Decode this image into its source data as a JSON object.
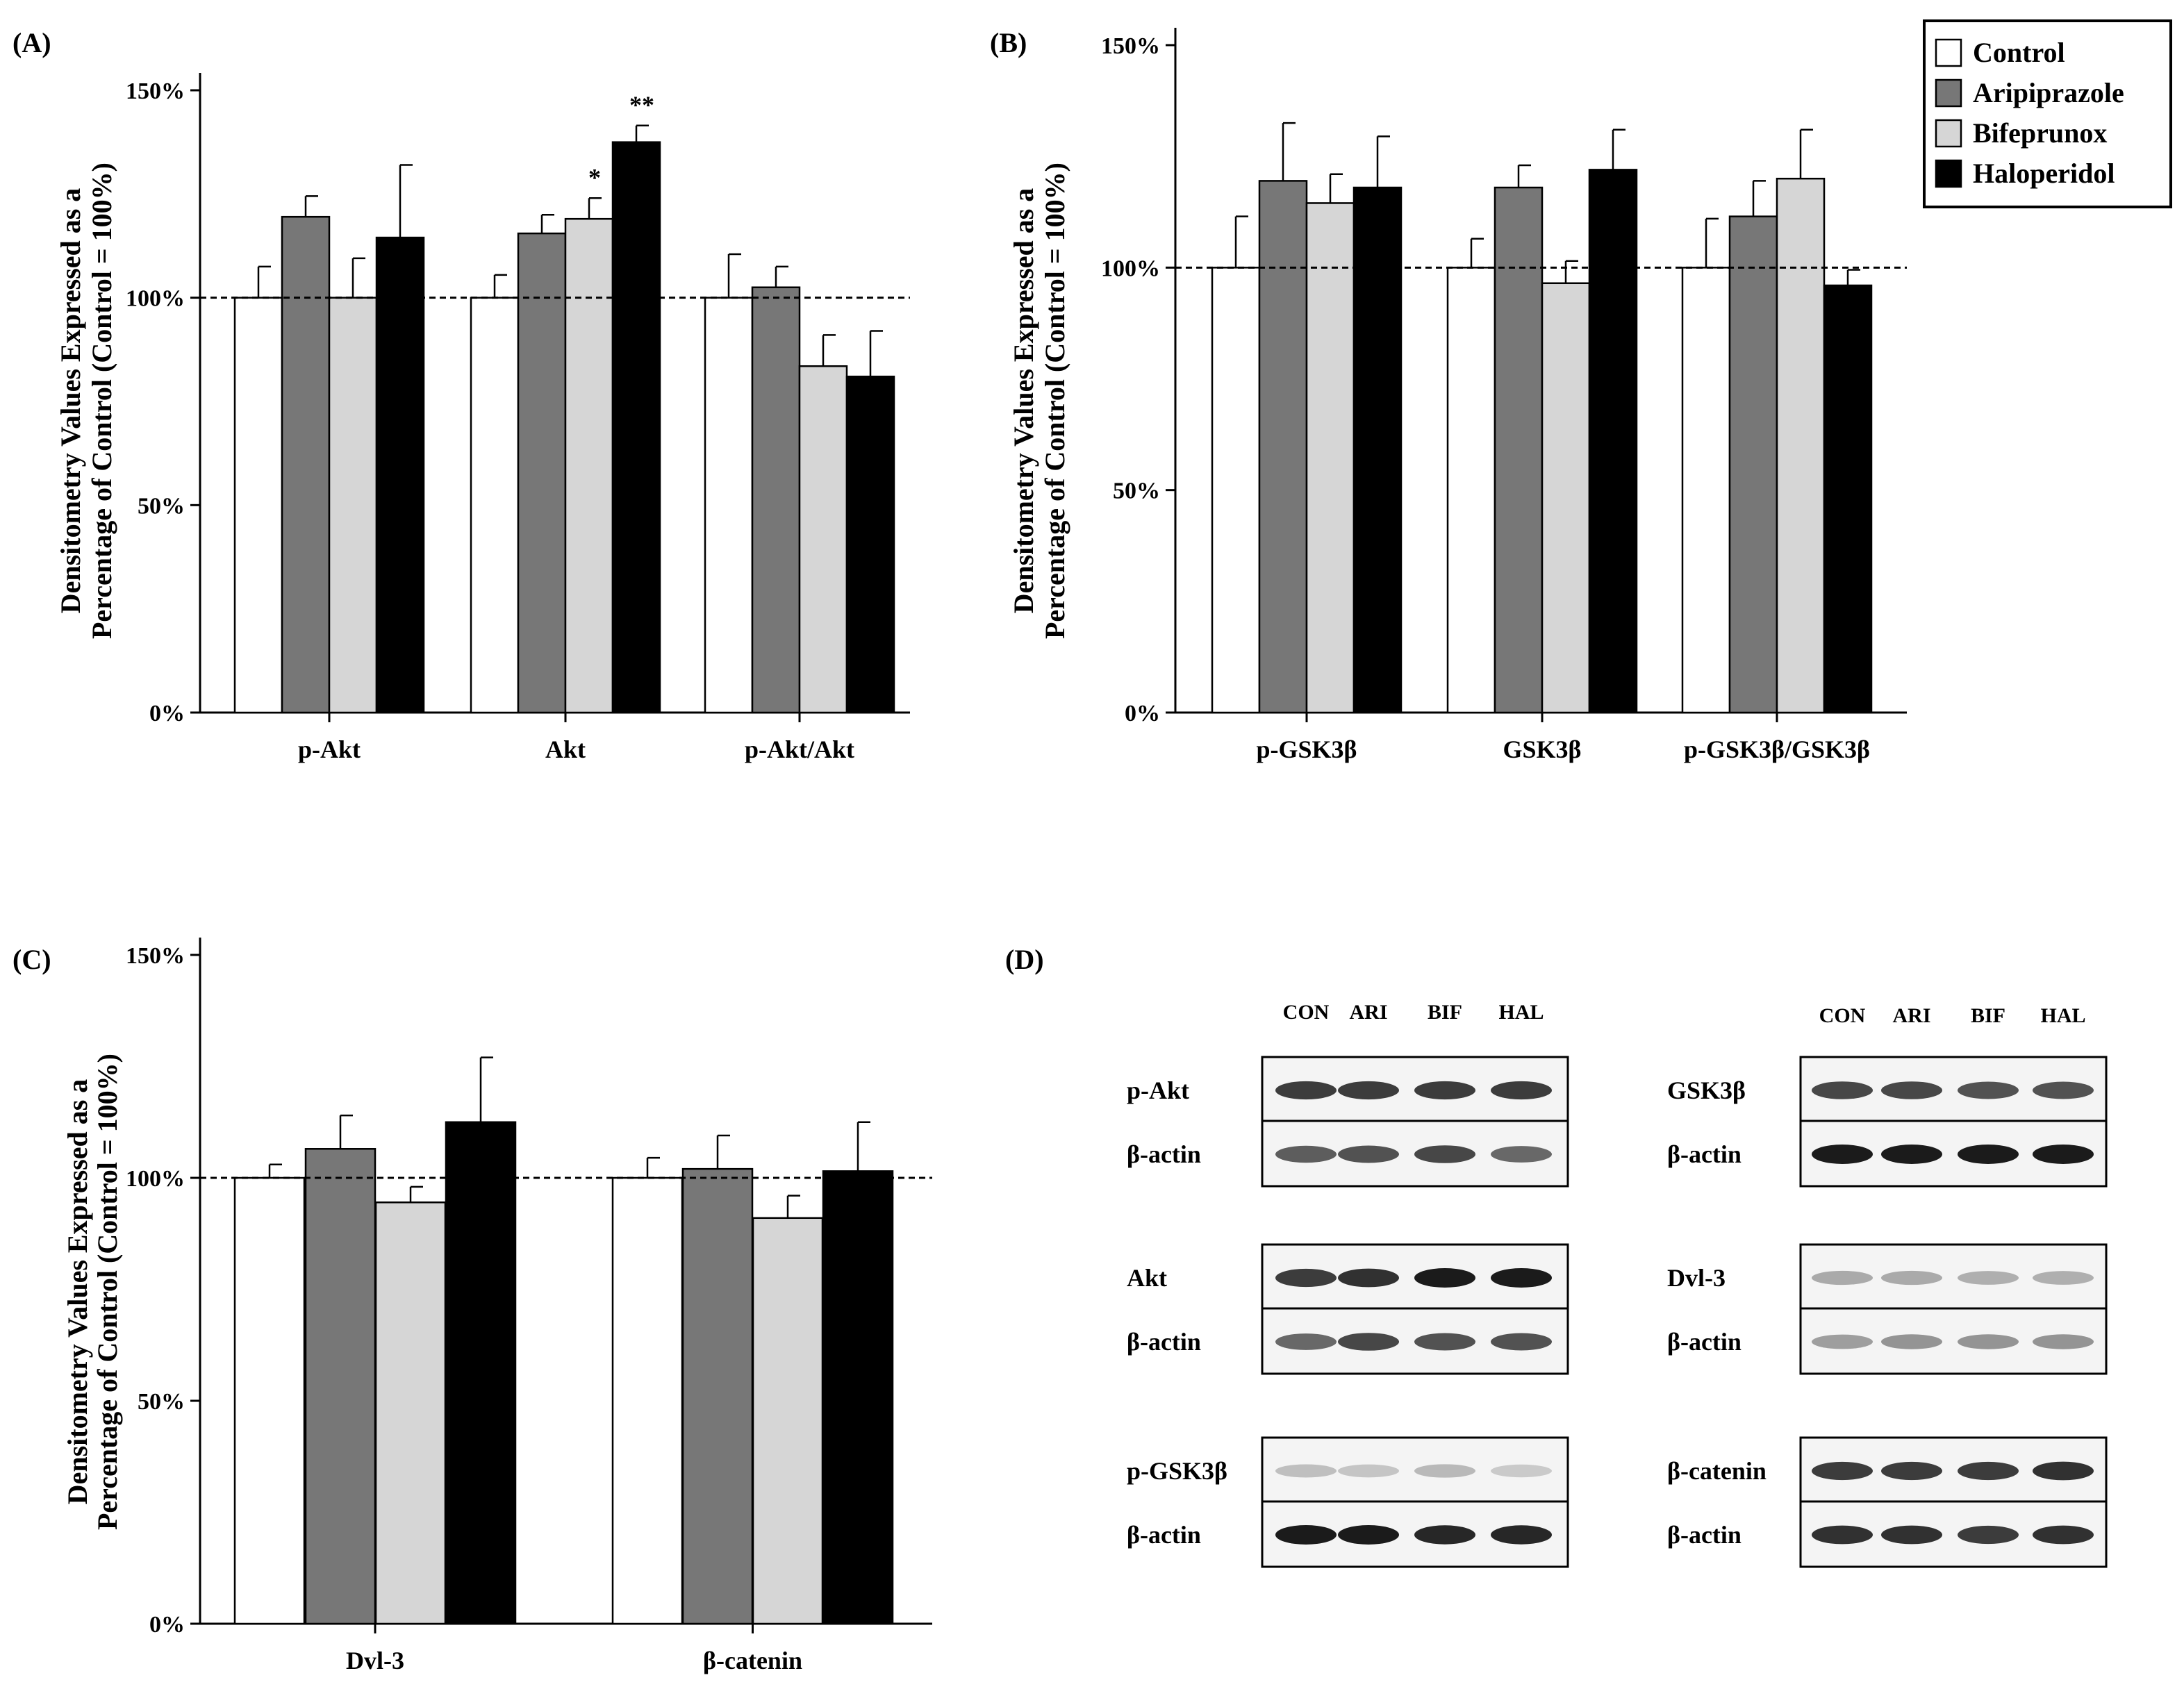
{
  "figure": {
    "panel_labels": [
      "(A)",
      "(B)",
      "(C)",
      "(D)"
    ],
    "ylabel_line1": "Densitometry Values Expressed as a",
    "ylabel_line2": "Percentage of Control (Control = 100%)"
  },
  "legend": {
    "entries": [
      {
        "label": "Control",
        "color": "#ffffff"
      },
      {
        "label": "Aripiprazole",
        "color": "#777777"
      },
      {
        "label": "Bifeprunox",
        "color": "#d6d6d6"
      },
      {
        "label": "Haloperidol",
        "color": "#000000"
      }
    ]
  },
  "chart_data": [
    {
      "panel": "(A)",
      "type": "bar",
      "categories": [
        "p-Akt",
        "Akt",
        "p-Akt/Akt"
      ],
      "ylim": [
        0,
        150
      ],
      "yticks": [
        "0%",
        "50%",
        "100%",
        "150%"
      ],
      "reference_line": 100,
      "series": [
        {
          "name": "Control",
          "color": "#ffffff",
          "values": [
            100,
            100,
            100
          ],
          "errors": [
            7.5,
            5.5,
            10.5
          ]
        },
        {
          "name": "Aripiprazole",
          "color": "#777777",
          "values": [
            119.5,
            115.5,
            102.5
          ],
          "errors": [
            5,
            4.5,
            5
          ]
        },
        {
          "name": "Bifeprunox",
          "color": "#d6d6d6",
          "values": [
            100,
            119,
            83.5
          ],
          "errors": [
            9.5,
            5,
            7.5
          ]
        },
        {
          "name": "Haloperidol",
          "color": "#000000",
          "values": [
            114.5,
            137.5,
            81
          ],
          "errors": [
            17.5,
            4,
            11
          ]
        }
      ],
      "significance": [
        {
          "category": 1,
          "series": 2,
          "label": "*"
        },
        {
          "category": 1,
          "series": 3,
          "label": "**"
        }
      ]
    },
    {
      "panel": "(B)",
      "type": "bar",
      "categories": [
        "p-GSK3β",
        "GSK3β",
        "p-GSK3β/GSK3β"
      ],
      "ylim": [
        0,
        150
      ],
      "yticks": [
        "0%",
        "50%",
        "100%",
        "150%"
      ],
      "reference_line": 100,
      "series": [
        {
          "name": "Control",
          "color": "#ffffff",
          "values": [
            100,
            100,
            100
          ],
          "errors": [
            11.5,
            6.5,
            11
          ]
        },
        {
          "name": "Aripiprazole",
          "color": "#777777",
          "values": [
            119.5,
            118,
            111.5
          ],
          "errors": [
            13,
            5,
            8
          ]
        },
        {
          "name": "Bifeprunox",
          "color": "#d6d6d6",
          "values": [
            114.5,
            96.5,
            120
          ],
          "errors": [
            6.5,
            5,
            11
          ]
        },
        {
          "name": "Haloperidol",
          "color": "#000000",
          "values": [
            118,
            122,
            96
          ],
          "errors": [
            11.5,
            9,
            3.5
          ]
        }
      ],
      "significance": []
    },
    {
      "panel": "(C)",
      "type": "bar",
      "categories": [
        "Dvl-3",
        "β-catenin"
      ],
      "ylim": [
        0,
        150
      ],
      "yticks": [
        "0%",
        "50%",
        "100%",
        "150%"
      ],
      "reference_line": 100,
      "series": [
        {
          "name": "Control",
          "color": "#ffffff",
          "values": [
            100,
            100
          ],
          "errors": [
            3,
            4.5
          ]
        },
        {
          "name": "Aripiprazole",
          "color": "#777777",
          "values": [
            106.5,
            102
          ],
          "errors": [
            7.5,
            7.5
          ]
        },
        {
          "name": "Bifeprunox",
          "color": "#d6d6d6",
          "values": [
            94.5,
            91
          ],
          "errors": [
            3.5,
            5
          ]
        },
        {
          "name": "Haloperidol",
          "color": "#000000",
          "values": [
            112.5,
            101.5
          ],
          "errors": [
            14.5,
            11
          ]
        }
      ],
      "significance": []
    }
  ],
  "blots": {
    "lane_labels": [
      "CON",
      "ARI",
      "BIF",
      "HAL"
    ],
    "left_column": [
      {
        "protein": "p-Akt",
        "loading": "β-actin",
        "protein_intensity": [
          0.85,
          0.85,
          0.85,
          0.85
        ],
        "loading_intensity": [
          0.7,
          0.75,
          0.8,
          0.65
        ]
      },
      {
        "protein": "Akt",
        "loading": "β-actin",
        "protein_intensity": [
          0.85,
          0.9,
          1.0,
          1.0
        ],
        "loading_intensity": [
          0.65,
          0.8,
          0.75,
          0.75
        ]
      },
      {
        "protein": "p-GSK3β",
        "loading": "β-actin",
        "protein_intensity": [
          0.25,
          0.22,
          0.28,
          0.2
        ],
        "loading_intensity": [
          1.0,
          1.0,
          0.95,
          0.95
        ]
      }
    ],
    "right_column": [
      {
        "protein": "GSK3β",
        "loading": "β-actin",
        "protein_intensity": [
          0.8,
          0.8,
          0.75,
          0.75
        ],
        "loading_intensity": [
          1.0,
          1.0,
          1.0,
          1.0
        ]
      },
      {
        "protein": "Dvl-3",
        "loading": "β-actin",
        "protein_intensity": [
          0.35,
          0.35,
          0.32,
          0.32
        ],
        "loading_intensity": [
          0.4,
          0.45,
          0.45,
          0.45
        ]
      },
      {
        "protein": "β-catenin",
        "loading": "β-actin",
        "protein_intensity": [
          0.85,
          0.85,
          0.85,
          0.9
        ],
        "loading_intensity": [
          0.9,
          0.9,
          0.85,
          0.9
        ]
      }
    ]
  }
}
